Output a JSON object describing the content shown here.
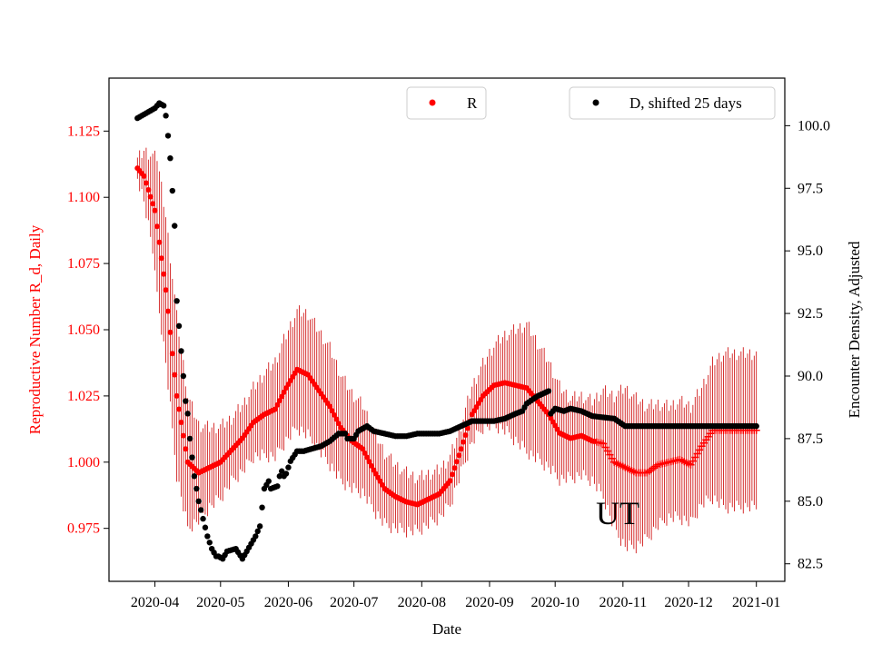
{
  "chart_data": {
    "type": "scatter",
    "annotation": "UT",
    "xlabel": "Date",
    "ylabel_left": "Reproductive Number R_d, Daily",
    "ylabel_right": "Encounter Density, Adjusted",
    "x_tick_labels": [
      "2020-04",
      "2020-05",
      "2020-06",
      "2020-07",
      "2020-08",
      "2020-09",
      "2020-10",
      "2020-11",
      "2020-12",
      "2021-01"
    ],
    "x_tick_day_offsets": [
      0,
      30,
      61,
      91,
      122,
      153,
      183,
      214,
      244,
      275
    ],
    "x_range_day_offsets": [
      -21,
      288
    ],
    "ylim_left": [
      0.955,
      1.145
    ],
    "ylim_right": [
      81.8,
      101.9
    ],
    "y_left_ticks": [
      0.975,
      1.0,
      1.025,
      1.05,
      1.075,
      1.1,
      1.125
    ],
    "y_left_tick_labels": [
      "0.975",
      "1.000",
      "1.025",
      "1.050",
      "1.075",
      "1.100",
      "1.125"
    ],
    "y_right_ticks": [
      82.5,
      85.0,
      87.5,
      90.0,
      92.5,
      95.0,
      97.5,
      100.0
    ],
    "y_right_tick_labels": [
      "82.5",
      "85.0",
      "87.5",
      "90.0",
      "92.5",
      "95.0",
      "97.5",
      "100.0"
    ],
    "legend": {
      "r_label": "R",
      "d_label": "D, shifted 25 days"
    },
    "colors": {
      "r": "#ff0000",
      "r_err": "#cc0000",
      "d": "#000000",
      "left_axis_text": "#ff0000"
    },
    "series": [
      {
        "name": "R",
        "axis": "left",
        "error_bar_keypoints": {
          "day": [
            -8,
            0,
            10,
            15,
            20,
            25,
            35,
            45,
            55,
            65,
            70,
            80,
            90,
            100,
            110,
            120,
            130,
            140,
            150,
            160,
            170,
            180,
            190,
            200,
            205,
            210,
            215,
            220,
            225,
            230,
            235,
            240,
            245,
            250,
            260,
            270,
            275
          ],
          "half_width": [
            0.008,
            0.025,
            0.03,
            0.025,
            0.018,
            0.015,
            0.012,
            0.013,
            0.018,
            0.022,
            0.023,
            0.022,
            0.018,
            0.015,
            0.012,
            0.01,
            0.009,
            0.009,
            0.012,
            0.018,
            0.024,
            0.02,
            0.015,
            0.015,
            0.02,
            0.025,
            0.03,
            0.028,
            0.025,
            0.023,
            0.021,
            0.022,
            0.022,
            0.022,
            0.029,
            0.029,
            0.029
          ]
        },
        "keypoints": {
          "day": [
            -8,
            -5,
            0,
            5,
            10,
            15,
            20,
            25,
            30,
            40,
            45,
            50,
            55,
            60,
            65,
            70,
            75,
            80,
            85,
            90,
            95,
            100,
            105,
            110,
            115,
            120,
            125,
            130,
            135,
            140,
            145,
            150,
            155,
            160,
            165,
            170,
            175,
            180,
            185,
            190,
            195,
            200,
            205,
            210,
            215,
            220,
            225,
            230,
            235,
            240,
            245,
            250,
            255,
            260,
            275
          ],
          "value": [
            1.111,
            1.108,
            1.095,
            1.065,
            1.025,
            1.0,
            0.996,
            0.998,
            1.0,
            1.009,
            1.015,
            1.018,
            1.02,
            1.028,
            1.035,
            1.033,
            1.027,
            1.021,
            1.013,
            1.008,
            1.005,
            0.997,
            0.99,
            0.987,
            0.985,
            0.984,
            0.986,
            0.988,
            0.993,
            1.005,
            1.018,
            1.025,
            1.029,
            1.03,
            1.029,
            1.028,
            1.023,
            1.018,
            1.011,
            1.009,
            1.01,
            1.008,
            1.007,
            1.0,
            0.998,
            0.996,
            0.996,
            0.999,
            1.0,
            1.001,
            0.999,
            1.006,
            1.012,
            1.012,
            1.012
          ]
        },
        "plus_marker_from_day": 202
      },
      {
        "name": "D, shifted 25 days",
        "axis": "right",
        "keypoints": {
          "day": [
            -8,
            -6,
            0,
            2,
            4,
            5,
            6,
            7,
            8,
            9,
            10,
            12,
            13,
            14,
            15,
            16,
            18,
            20,
            22,
            24,
            26,
            28,
            29,
            31,
            33,
            37,
            40,
            44,
            46,
            48,
            50,
            52,
            53,
            56,
            57,
            58,
            59,
            60,
            62,
            65,
            68,
            72,
            76,
            80,
            84,
            87,
            88,
            91,
            93,
            97,
            100,
            105,
            110,
            115,
            120,
            125,
            130,
            135,
            140,
            145,
            150,
            155,
            160,
            165,
            168,
            170,
            175,
            180,
            181,
            183,
            187,
            190,
            195,
            200,
            210,
            215,
            220,
            230,
            275
          ],
          "value": [
            100.3,
            100.4,
            100.7,
            100.9,
            100.8,
            100.4,
            99.6,
            98.7,
            97.4,
            96.0,
            93.0,
            91.0,
            90.0,
            89.0,
            88.5,
            87.5,
            86.0,
            85.0,
            84.3,
            83.6,
            83.1,
            82.8,
            82.8,
            82.7,
            83.0,
            83.1,
            82.7,
            83.3,
            83.6,
            84.0,
            85.5,
            85.8,
            85.5,
            85.6,
            86.0,
            86.2,
            86.0,
            86.1,
            86.6,
            87.0,
            87.0,
            87.1,
            87.2,
            87.4,
            87.7,
            87.7,
            87.5,
            87.5,
            87.8,
            88.0,
            87.8,
            87.7,
            87.6,
            87.6,
            87.7,
            87.7,
            87.7,
            87.8,
            88.0,
            88.2,
            88.2,
            88.2,
            88.3,
            88.5,
            88.6,
            88.9,
            89.2,
            89.4,
            88.5,
            88.7,
            88.6,
            88.7,
            88.6,
            88.4,
            88.3,
            88.0,
            88.0,
            88.0,
            88.0
          ]
        }
      }
    ]
  }
}
